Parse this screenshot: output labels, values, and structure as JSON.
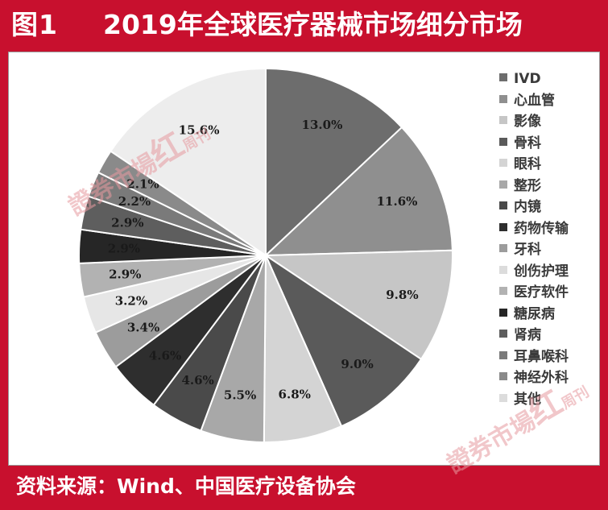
{
  "header": {
    "figure_label": "图1",
    "title": "2019年全球医疗器械市场细分市场"
  },
  "footer": {
    "source": "资料来源：Wind、中国医疗设备协会"
  },
  "watermark": {
    "text_main": "證券市場",
    "text_red": "红",
    "text_zhou": "周刊"
  },
  "colors": {
    "frame": "#c8102e",
    "text_on_frame": "#ffffff"
  },
  "chart_data": {
    "type": "pie",
    "title": "",
    "start_angle_deg": 0,
    "direction": "clockwise",
    "slices": [
      {
        "label": "IVD",
        "value": 13.0,
        "value_label": "13.0%",
        "color": "#6d6d6d"
      },
      {
        "label": "心血管",
        "value": 11.6,
        "value_label": "11.6%",
        "color": "#8f8f8f"
      },
      {
        "label": "影像",
        "value": 9.8,
        "value_label": "9.8%",
        "color": "#c6c6c6"
      },
      {
        "label": "骨科",
        "value": 9.0,
        "value_label": "9.0%",
        "color": "#5a5a5a"
      },
      {
        "label": "眼科",
        "value": 6.8,
        "value_label": "6.8%",
        "color": "#d4d4d4"
      },
      {
        "label": "整形",
        "value": 5.5,
        "value_label": "5.5%",
        "color": "#a8a8a8"
      },
      {
        "label": "内镜",
        "value": 4.6,
        "value_label": "4.6%",
        "color": "#4a4a4a"
      },
      {
        "label": "药物传输",
        "value": 4.6,
        "value_label": "4.6%",
        "color": "#2e2e2e"
      },
      {
        "label": "牙科",
        "value": 3.4,
        "value_label": "3.4%",
        "color": "#9c9c9c"
      },
      {
        "label": "创伤护理",
        "value": 3.2,
        "value_label": "3.2%",
        "color": "#e6e6e6"
      },
      {
        "label": "医疗软件",
        "value": 2.9,
        "value_label": "2.9%",
        "color": "#b2b2b2"
      },
      {
        "label": "糖尿病",
        "value": 2.9,
        "value_label": "2.9%",
        "color": "#262626"
      },
      {
        "label": "肾病",
        "value": 2.9,
        "value_label": "2.9%",
        "color": "#5e5e5e"
      },
      {
        "label": "耳鼻喉科",
        "value": 2.2,
        "value_label": "2.2%",
        "color": "#7a7a7a"
      },
      {
        "label": "神经外科",
        "value": 2.1,
        "value_label": "2.1%",
        "color": "#8a8a8a"
      },
      {
        "label": "其他",
        "value": 15.6,
        "value_label": "15.6%",
        "color": "#ededed"
      }
    ],
    "legend_position": "right"
  }
}
